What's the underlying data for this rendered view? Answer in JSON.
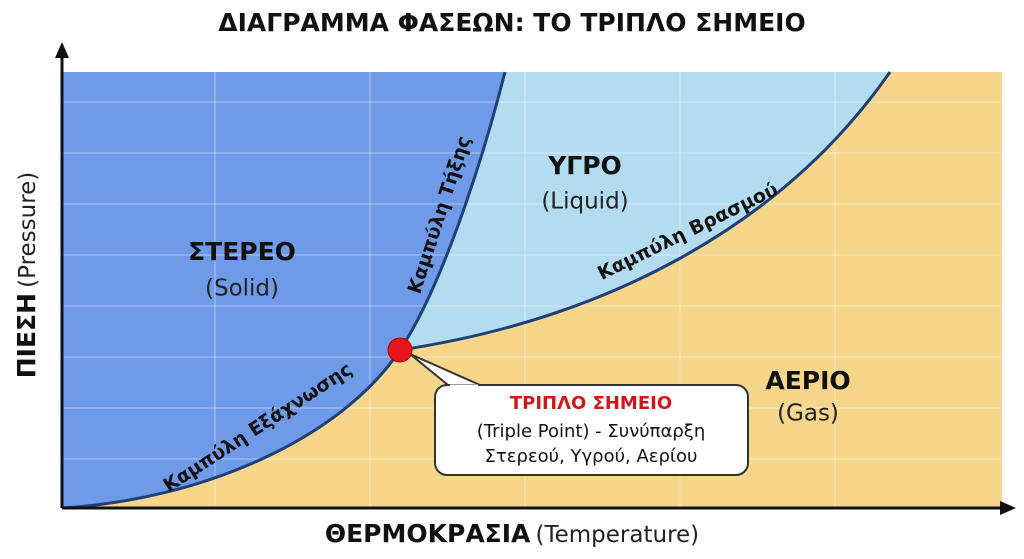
{
  "title": "ΔΙΑΓΡΑΜΜΑ ΦΑΣΕΩΝ: ΤΟ ΤΡΙΠΛΟ ΣΗΜΕΙΟ",
  "x_axis": {
    "label": "ΘΕΡΜΟΚΡΑΣΙΑ",
    "sublabel": "(Temperature)"
  },
  "y_axis": {
    "label": "ΠΙΕΣΗ",
    "sublabel": "(Pressure)"
  },
  "regions": [
    {
      "label": "ΣΤΕΡΕΟ",
      "sublabel": "(Solid)"
    },
    {
      "label": "ΥΓΡΟ",
      "sublabel": "(Liquid)"
    },
    {
      "label": "ΑΕΡΙΟ",
      "sublabel": "(Gas)"
    }
  ],
  "curves": [
    {
      "label": "Καμπύλη Εξάχνωσης"
    },
    {
      "label": "Καμπύλη Τήξης"
    },
    {
      "label": "Καμπύλη Βρασμού"
    }
  ],
  "callout": {
    "title": "ΤΡΙΠΛΟ ΣΗΜΕΙΟ",
    "lines": [
      "(Triple Point) - Συνύπαρξη",
      "Στερεού, Υγρού, Αερίου"
    ]
  }
}
